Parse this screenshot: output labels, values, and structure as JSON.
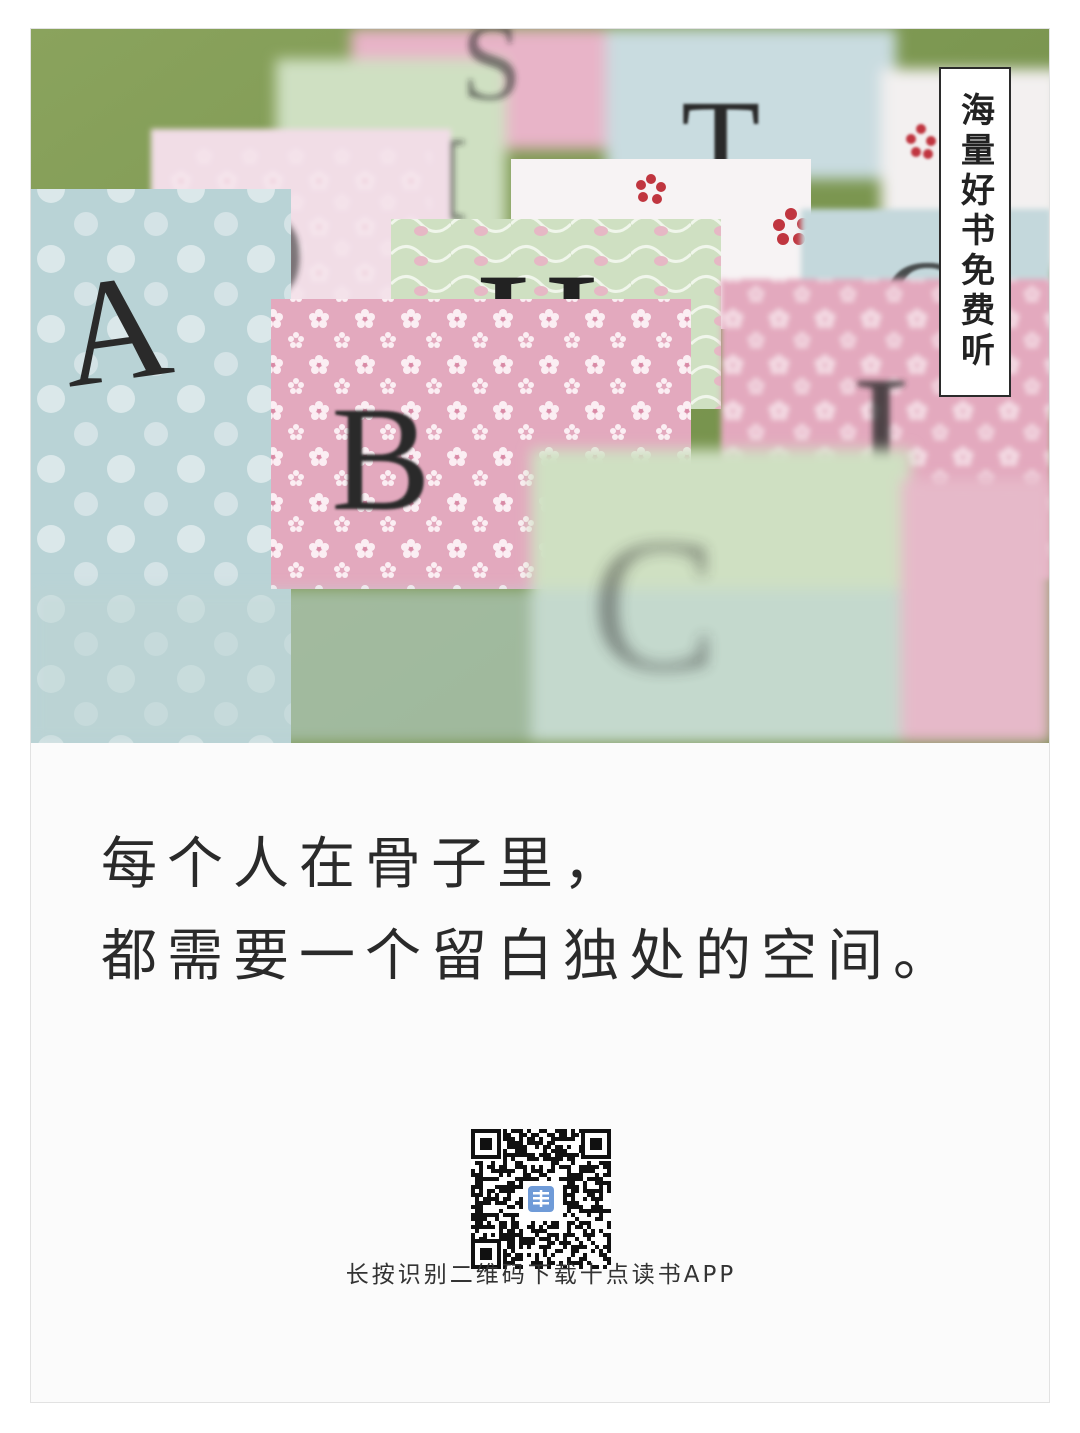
{
  "photo": {
    "letters": [
      "S",
      "T",
      "M",
      "O",
      "N",
      "H",
      "A",
      "B",
      "C",
      "I"
    ],
    "palette": {
      "blue_card": "#b9d3d6",
      "pink_card": "#e3a9be",
      "green_card": "#cfe0c2",
      "background_green": "#7f9a52",
      "letter_ink": "#2a2a2a"
    }
  },
  "badge": {
    "text": "海量好书免费听"
  },
  "quote": {
    "line1": "每个人在骨子里，",
    "line2": "都需要一个留白独处的空间。"
  },
  "qr": {
    "center_logo_icon": "app-logo-icon"
  },
  "footer": {
    "caption": "长按识别二维码下载十点读书APP"
  }
}
